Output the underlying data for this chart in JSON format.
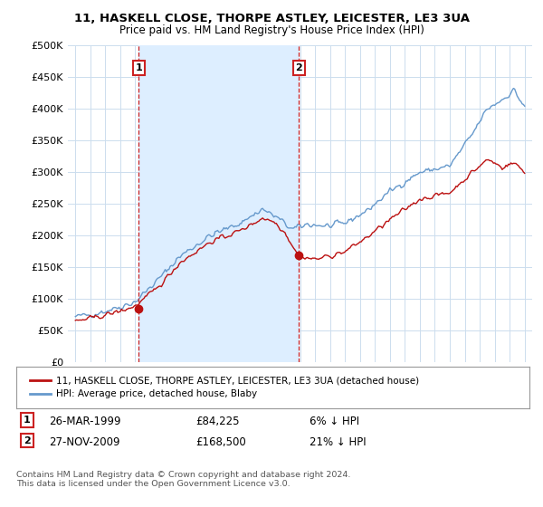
{
  "title": "11, HASKELL CLOSE, THORPE ASTLEY, LEICESTER, LE3 3UA",
  "subtitle": "Price paid vs. HM Land Registry's House Price Index (HPI)",
  "ylabel_ticks": [
    "£0",
    "£50K",
    "£100K",
    "£150K",
    "£200K",
    "£250K",
    "£300K",
    "£350K",
    "£400K",
    "£450K",
    "£500K"
  ],
  "ytick_values": [
    0,
    50000,
    100000,
    150000,
    200000,
    250000,
    300000,
    350000,
    400000,
    450000,
    500000
  ],
  "ylim": [
    0,
    500000
  ],
  "hpi_color": "#6699cc",
  "price_color": "#bb1111",
  "marker_color": "#bb1111",
  "sale1_date": "26-MAR-1999",
  "sale1_price": "£84,225",
  "sale1_pct": "6% ↓ HPI",
  "sale2_date": "27-NOV-2009",
  "sale2_price": "£168,500",
  "sale2_pct": "21% ↓ HPI",
  "legend1": "11, HASKELL CLOSE, THORPE ASTLEY, LEICESTER, LE3 3UA (detached house)",
  "legend2": "HPI: Average price, detached house, Blaby",
  "footer": "Contains HM Land Registry data © Crown copyright and database right 2024.\nThis data is licensed under the Open Government Licence v3.0.",
  "background_color": "#ffffff",
  "plot_bg_color": "#ffffff",
  "grid_color": "#ccddee",
  "vline_color": "#cc2222",
  "shade_color": "#ddeeff",
  "sale1_x": 1999.23,
  "sale2_x": 2009.92,
  "sale1_y": 84225,
  "sale2_y": 168500,
  "xlim_left": 1994.5,
  "xlim_right": 2025.5
}
